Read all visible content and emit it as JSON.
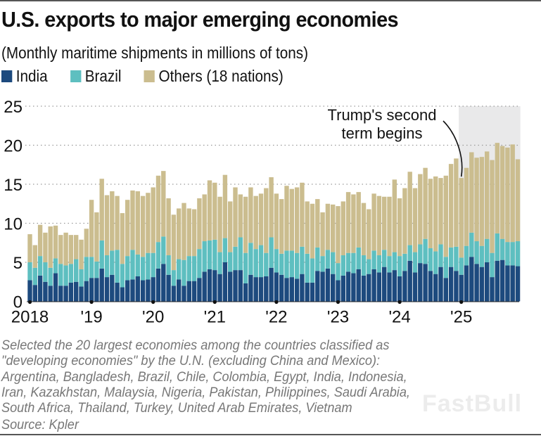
{
  "title": "U.S. exports to major emerging economies",
  "subtitle": "(Monthly maritime shipments in millions of tons)",
  "legend": [
    {
      "label": "India",
      "color": "#1d4a7e"
    },
    {
      "label": "Brazil",
      "color": "#5ebfc0"
    },
    {
      "label": "Others (18 nations)",
      "color": "#cbbd8f"
    }
  ],
  "notes": [
    "Selected the 20 largest economies among the countries classified as",
    "\"developing economies\" by the U.N. (excluding China and Mexico):",
    "Argentina, Bangladesh, Brazil, Chile, Colombia, Egypt, India, Indonesia,",
    "Iran, Kazakhstan, Malaysia, Nigeria, Pakistan, Philippines, Saudi Arabia,",
    "South Africa, Thailand, Turkey, United Arab Emirates, Vietnam"
  ],
  "source": "Source: Kpler",
  "watermark": "FastBull",
  "chart_data": {
    "type": "bar",
    "stacked": true,
    "title": "U.S. exports to major emerging economies",
    "subtitle": "(Monthly maritime shipments in millions of tons)",
    "xlabel": "",
    "ylabel": "Millions of tons",
    "ylim": [
      0,
      25
    ],
    "yticks": [
      0,
      5,
      10,
      15,
      20,
      25
    ],
    "grid": true,
    "legend_position": "top-left",
    "x_tick_labels": [
      "2018",
      "'19",
      "'20",
      "'21",
      "'22",
      "'23",
      "'24",
      "'25"
    ],
    "start": "2018-01",
    "end": "2025-12",
    "categories": [
      "2018-01",
      "2018-02",
      "2018-03",
      "2018-04",
      "2018-05",
      "2018-06",
      "2018-07",
      "2018-08",
      "2018-09",
      "2018-10",
      "2018-11",
      "2018-12",
      "2019-01",
      "2019-02",
      "2019-03",
      "2019-04",
      "2019-05",
      "2019-06",
      "2019-07",
      "2019-08",
      "2019-09",
      "2019-10",
      "2019-11",
      "2019-12",
      "2020-01",
      "2020-02",
      "2020-03",
      "2020-04",
      "2020-05",
      "2020-06",
      "2020-07",
      "2020-08",
      "2020-09",
      "2020-10",
      "2020-11",
      "2020-12",
      "2021-01",
      "2021-02",
      "2021-03",
      "2021-04",
      "2021-05",
      "2021-06",
      "2021-07",
      "2021-08",
      "2021-09",
      "2021-10",
      "2021-11",
      "2021-12",
      "2022-01",
      "2022-02",
      "2022-03",
      "2022-04",
      "2022-05",
      "2022-06",
      "2022-07",
      "2022-08",
      "2022-09",
      "2022-10",
      "2022-11",
      "2022-12",
      "2023-01",
      "2023-02",
      "2023-03",
      "2023-04",
      "2023-05",
      "2023-06",
      "2023-07",
      "2023-08",
      "2023-09",
      "2023-10",
      "2023-11",
      "2023-12",
      "2024-01",
      "2024-02",
      "2024-03",
      "2024-04",
      "2024-05",
      "2024-06",
      "2024-07",
      "2024-08",
      "2024-09",
      "2024-10",
      "2024-11",
      "2024-12",
      "2025-01",
      "2025-02",
      "2025-03",
      "2025-04",
      "2025-05",
      "2025-06",
      "2025-07",
      "2025-08",
      "2025-09",
      "2025-10",
      "2025-11",
      "2025-12"
    ],
    "series": [
      {
        "name": "India",
        "values": [
          2.7,
          2.1,
          3.3,
          2.5,
          2.0,
          3.6,
          2.0,
          2.0,
          2.4,
          2.5,
          1.9,
          2.6,
          3.0,
          3.0,
          4.2,
          3.1,
          3.4,
          2.4,
          1.8,
          2.7,
          2.8,
          3.2,
          2.7,
          2.8,
          3.1,
          4.2,
          4.8,
          3.4,
          2.0,
          2.8,
          2.0,
          2.6,
          2.6,
          3.0,
          3.8,
          4.1,
          4.0,
          3.5,
          5.0,
          3.8,
          4.0,
          4.0,
          2.3,
          3.4,
          3.1,
          3.1,
          3.2,
          4.3,
          3.7,
          3.4,
          3.0,
          3.1,
          2.9,
          3.5,
          2.4,
          2.4,
          3.9,
          3.8,
          4.2,
          3.5,
          2.7,
          3.3,
          3.8,
          3.6,
          4.1,
          3.3,
          3.5,
          4.1,
          3.7,
          4.4,
          3.7,
          4.0,
          3.2,
          3.9,
          5.2,
          3.7,
          4.9,
          4.8,
          3.9,
          3.5,
          4.4,
          3.0,
          4.4,
          3.9,
          3.4,
          4.6,
          5.7,
          4.8,
          4.4,
          5.0,
          3.1,
          5.2,
          5.3,
          4.6,
          4.6,
          4.5
        ]
      },
      {
        "name": "Brazil",
        "values": [
          2.3,
          2.2,
          2.5,
          2.5,
          2.3,
          1.9,
          2.8,
          2.6,
          2.4,
          2.9,
          2.2,
          3.1,
          2.7,
          2.1,
          3.6,
          2.8,
          3.1,
          4.2,
          3.0,
          3.1,
          3.8,
          2.8,
          3.0,
          3.4,
          3.1,
          3.4,
          3.5,
          2.5,
          2.0,
          2.6,
          3.3,
          3.2,
          3.2,
          3.7,
          3.9,
          3.7,
          3.9,
          2.8,
          3.1,
          2.5,
          3.0,
          4.2,
          3.9,
          4.1,
          3.6,
          4.1,
          3.0,
          3.9,
          3.0,
          2.7,
          3.5,
          3.4,
          3.3,
          3.5,
          3.7,
          3.1,
          3.0,
          2.0,
          2.4,
          2.8,
          2.2,
          2.6,
          2.4,
          2.6,
          2.8,
          2.6,
          1.9,
          2.4,
          2.2,
          2.2,
          2.1,
          2.3,
          2.6,
          2.2,
          2.0,
          2.6,
          2.4,
          3.2,
          2.9,
          2.9,
          2.9,
          2.7,
          2.5,
          3.1,
          2.2,
          2.5,
          3.1,
          2.9,
          2.7,
          3.0,
          3.1,
          3.5,
          2.7,
          3.0,
          3.0,
          3.2
        ]
      },
      {
        "name": "Others (18 nations)",
        "values": [
          3.6,
          2.9,
          4.0,
          3.8,
          5.3,
          4.2,
          3.7,
          4.2,
          3.7,
          3.1,
          3.8,
          3.6,
          7.3,
          6.3,
          7.9,
          7.7,
          7.6,
          6.9,
          6.5,
          7.2,
          7.6,
          8.1,
          7.8,
          7.7,
          8.4,
          8.5,
          8.4,
          7.3,
          7.1,
          6.5,
          7.3,
          6.1,
          6.0,
          6.5,
          6.0,
          7.7,
          7.3,
          7.1,
          8.1,
          6.5,
          7.6,
          5.5,
          7.2,
          7.1,
          6.8,
          6.6,
          8.3,
          7.7,
          7.1,
          7.0,
          8.3,
          7.9,
          8.4,
          8.2,
          6.7,
          7.0,
          6.2,
          5.6,
          5.9,
          6.1,
          7.3,
          6.9,
          7.8,
          7.5,
          7.1,
          6.7,
          6.4,
          7.3,
          7.6,
          6.8,
          7.6,
          9.3,
          7.4,
          8.4,
          9.4,
          8.2,
          9.0,
          9.1,
          8.9,
          9.6,
          8.5,
          10.4,
          10.7,
          11.3,
          10.2,
          10.0,
          10.3,
          10.7,
          11.4,
          11.2,
          11.9,
          11.6,
          11.9,
          12.1,
          12.5,
          10.5
        ]
      }
    ],
    "annotations": [
      {
        "text_lines": [
          "Trump's second",
          "term begins"
        ],
        "points_to": "2025-01",
        "shaded_period": [
          "2025-01",
          "2025-12"
        ]
      }
    ]
  }
}
